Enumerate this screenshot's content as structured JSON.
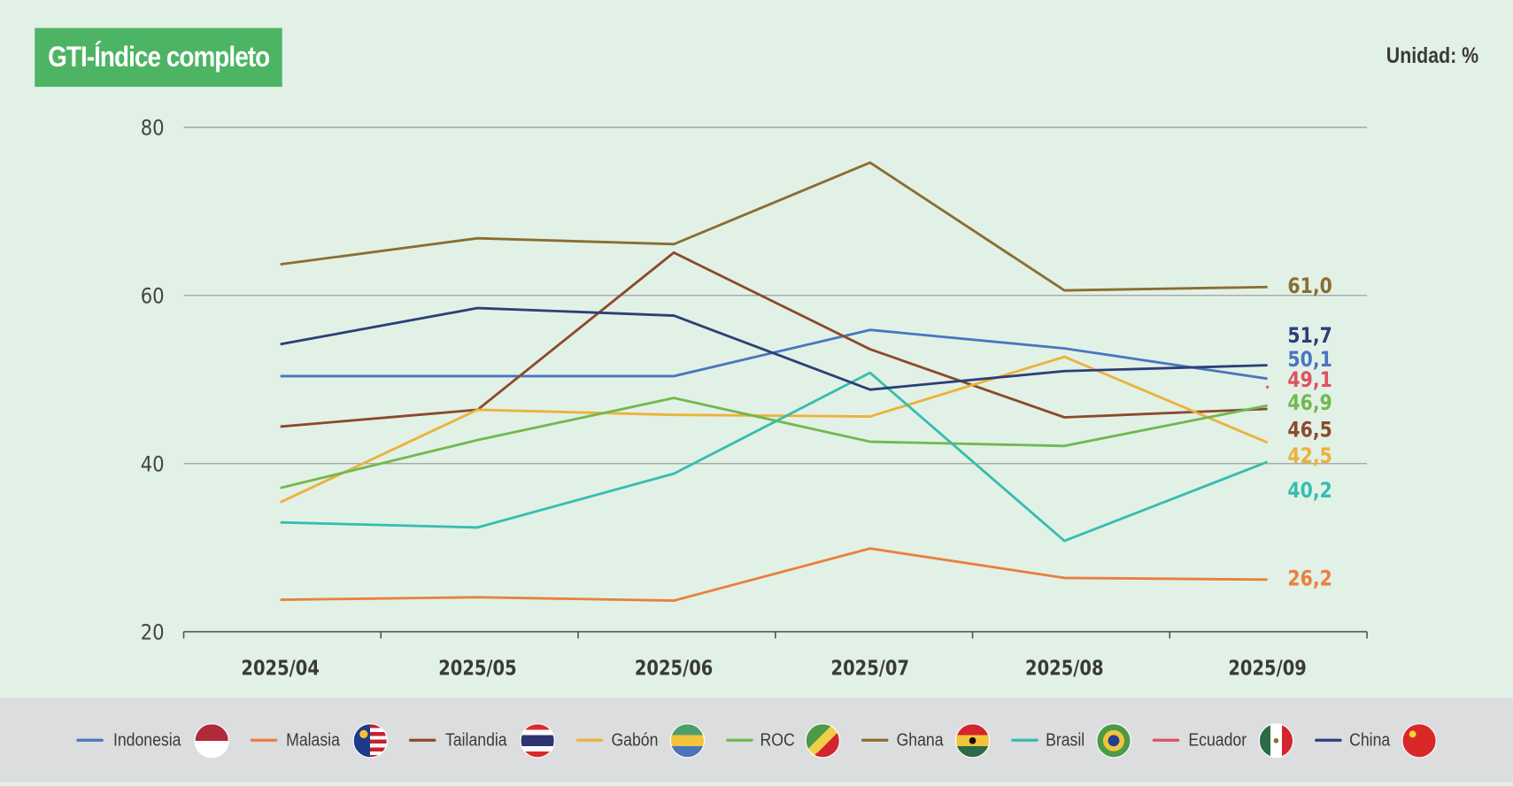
{
  "title": "GTI-Índice completo",
  "unit": "Unidad: %",
  "chart_data": {
    "type": "line",
    "title": "GTI-Índice completo",
    "ylabel": "Unidad: %",
    "x": [
      "2025/04",
      "2025/05",
      "2025/06",
      "2025/07",
      "2025/08",
      "2025/09"
    ],
    "ylim": [
      20,
      80
    ],
    "yticks": [
      20,
      40,
      60,
      80
    ],
    "grid": true,
    "legend": "bottom",
    "series": [
      {
        "name": "Indonesia",
        "color": "#4a76c0",
        "values": [
          50.4,
          50.4,
          50.4,
          55.9,
          53.7,
          50.1
        ],
        "end_label": "50,1",
        "flag": "indonesia"
      },
      {
        "name": "Malasia",
        "color": "#e8803e",
        "values": [
          23.8,
          24.1,
          23.7,
          29.9,
          26.4,
          26.2
        ],
        "end_label": "26,2",
        "flag": "malaysia"
      },
      {
        "name": "Tailandia",
        "color": "#8b4a2b",
        "values": [
          44.4,
          46.4,
          65.1,
          53.6,
          45.5,
          46.5
        ],
        "end_label": "46,5",
        "flag": "thailand"
      },
      {
        "name": "Gabón",
        "color": "#ecb23a",
        "values": [
          35.4,
          46.4,
          45.8,
          45.6,
          52.7,
          42.5
        ],
        "end_label": "42,5",
        "flag": "gabon"
      },
      {
        "name": "ROC",
        "color": "#72b84f",
        "values": [
          37.1,
          42.8,
          47.8,
          42.6,
          42.1,
          46.9
        ],
        "end_label": "46,9",
        "flag": "congo"
      },
      {
        "name": "Ghana",
        "color": "#8a6d33",
        "values": [
          63.7,
          66.8,
          66.1,
          75.8,
          60.6,
          61.0
        ],
        "end_label": "61,0",
        "flag": "ghana"
      },
      {
        "name": "Brasil",
        "color": "#36bdb0",
        "values": [
          33.0,
          32.4,
          38.8,
          50.8,
          30.8,
          40.2
        ],
        "end_label": "40,2",
        "flag": "brazil"
      },
      {
        "name": "Ecuador",
        "color": "#e05262",
        "values": [
          null,
          null,
          null,
          null,
          null,
          49.1
        ],
        "end_label": "49,1",
        "flag": "mexico"
      },
      {
        "name": "China",
        "color": "#2b3f78",
        "values": [
          54.2,
          58.5,
          57.6,
          48.8,
          51.0,
          51.7
        ],
        "end_label": "51,7",
        "flag": "china"
      }
    ]
  }
}
